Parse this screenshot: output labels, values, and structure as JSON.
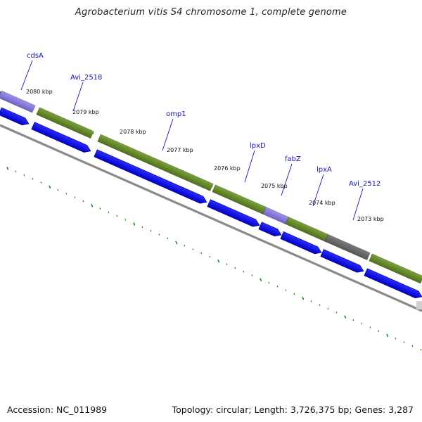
{
  "title": "Agrobacterium vitis S4 chromosome 1, complete genome",
  "footer": {
    "accession": "Accession: NC_011989",
    "topology": "Topology: circular; Length: 3,726,375 bp; Genes: 3,287"
  },
  "colors": {
    "cds_forward": "#0000ff",
    "gene_green": "#6b8e23",
    "gene_purple": "#8a7ee0",
    "gene_gray": "#6a6a6a",
    "backbone": "#808080",
    "ticks": "#1a8a1a",
    "labels": "#1414b4"
  },
  "genes": [
    {
      "name": "cdsA"
    },
    {
      "name": "Avi_2518"
    },
    {
      "name": "omp1"
    },
    {
      "name": "lpxD"
    },
    {
      "name": "fabZ"
    },
    {
      "name": "lpxA"
    },
    {
      "name": "Avi_2512"
    }
  ],
  "kbp_ticks": [
    "2080 kbp",
    "2079 kbp",
    "2078 kbp",
    "2077 kbp",
    "2076 kbp",
    "2075 kbp",
    "2074 kbp",
    "2073 kbp"
  ]
}
